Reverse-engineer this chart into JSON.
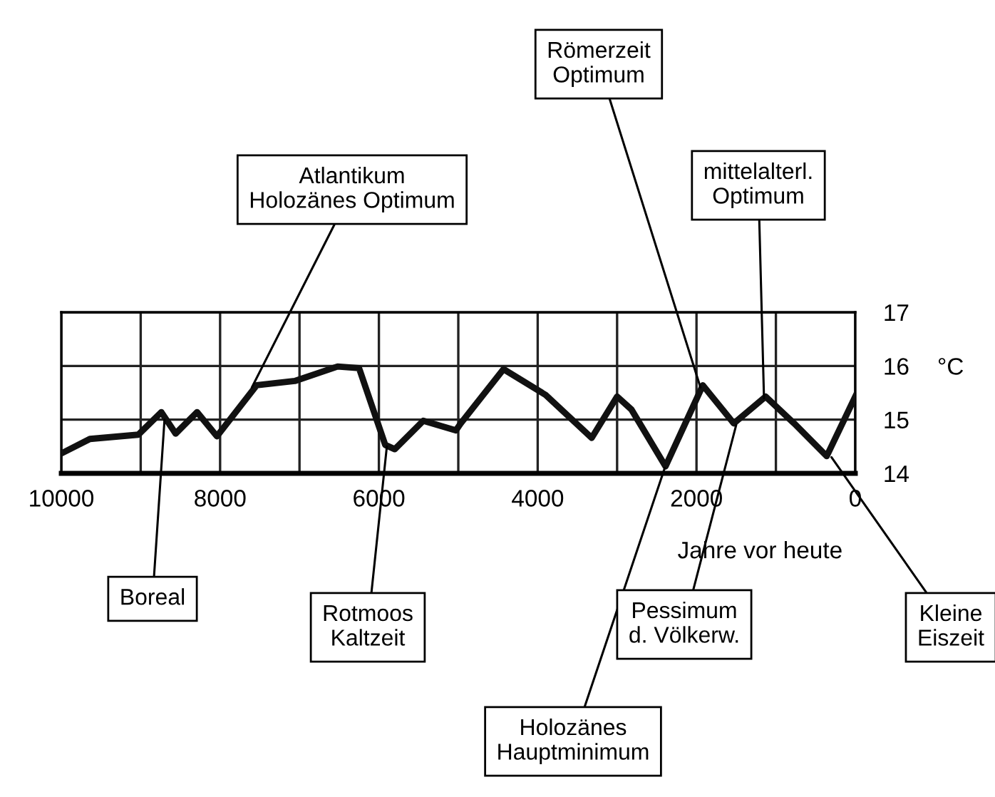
{
  "chart_data": {
    "type": "line",
    "xlabel": "Jahre vor heute",
    "ylabel": "°C",
    "x": [
      10000,
      9640,
      9030,
      8740,
      8560,
      8290,
      8040,
      7540,
      7060,
      6520,
      6250,
      5920,
      5800,
      5440,
      5030,
      4970,
      4430,
      3900,
      3320,
      3000,
      2820,
      2390,
      1920,
      1530,
      1130,
      770,
      360,
      0
    ],
    "series": [
      {
        "color": "#111111",
        "values": [
          14.37,
          14.64,
          14.72,
          15.14,
          14.74,
          15.14,
          14.69,
          15.64,
          15.72,
          15.99,
          15.96,
          14.53,
          14.45,
          14.98,
          14.8,
          14.93,
          15.94,
          15.46,
          14.66,
          15.43,
          15.19,
          14.13,
          15.64,
          14.93,
          15.43,
          14.93,
          14.32,
          15.43
        ]
      }
    ],
    "xlim": [
      10000,
      0
    ],
    "ylim": [
      14,
      17
    ],
    "xticks": [
      10000,
      {
        "value": 9000,
        "label": null
      },
      8000,
      {
        "value": 7000,
        "label": null
      },
      6000,
      {
        "value": 5000,
        "label": null
      },
      4000,
      {
        "value": 3000,
        "label": null
      },
      2000,
      {
        "value": 1000,
        "label": null
      },
      0
    ],
    "yticks": [
      14,
      15,
      16,
      17
    ],
    "grid": true,
    "legend": false,
    "marker": "none",
    "line_style": "solid",
    "annotations": [
      {
        "text": "Römerzeit\nOptimum",
        "x": 1950,
        "y": 15.6
      },
      {
        "text": "Atlantikum\nHolozänes Optimum",
        "x": 7600,
        "y": 15.6
      },
      {
        "text": "mittelalterl.\nOptimum",
        "x": 1150,
        "y": 15.4
      },
      {
        "text": "Boreal",
        "x": 8700,
        "y": 15.0
      },
      {
        "text": "Rotmoos\nKaltzeit",
        "x": 5900,
        "y": 14.5
      },
      {
        "text": "Holozänes\nHauptminimum",
        "x": 2400,
        "y": 14.1
      },
      {
        "text": "Pessimum\nd. Völkerw.",
        "x": 1500,
        "y": 14.9
      },
      {
        "text": "Kleine\nEiszeit",
        "x": 300,
        "y": 14.3
      }
    ]
  }
}
